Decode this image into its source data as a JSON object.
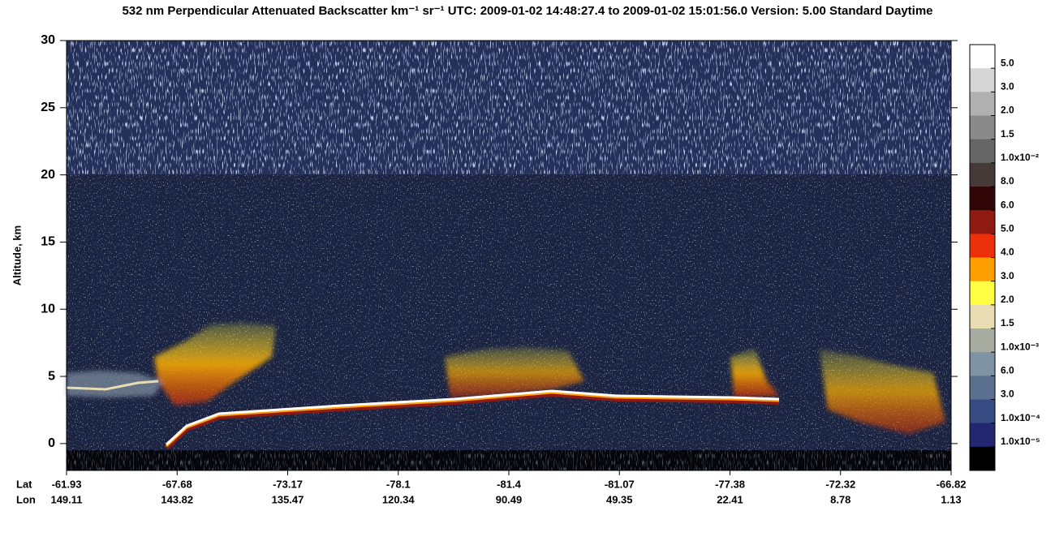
{
  "chart_data": {
    "type": "curtain",
    "title": "532 nm Perpendicular Attenuated Backscatter km⁻¹ sr⁻¹  UTC: 2009-01-02 14:48:27.4 to 2009-01-02 15:01:56.0  Version: 5.00 Standard Daytime",
    "ylabel": "Altitude, km",
    "ylim": [
      -2,
      30
    ],
    "yticks": [
      0,
      5,
      10,
      15,
      20,
      25,
      30
    ],
    "x_rows": [
      {
        "name": "Lat",
        "values": [
          -61.93,
          -67.68,
          -73.17,
          -78.1,
          -81.4,
          -81.07,
          -77.38,
          -72.32,
          -66.82
        ]
      },
      {
        "name": "Lon",
        "values": [
          149.11,
          143.82,
          135.47,
          120.34,
          90.49,
          49.35,
          22.41,
          8.78,
          1.13
        ]
      }
    ],
    "colorbar": {
      "colors": [
        "#ffffff",
        "#d6d6d6",
        "#b0b0b0",
        "#8a8a8a",
        "#666666",
        "#453a37",
        "#300606",
        "#8e1a12",
        "#ec300c",
        "#ff9e00",
        "#ffff44",
        "#eadcb2",
        "#a9aca1",
        "#8093a4",
        "#5b708e",
        "#384a82",
        "#232770",
        "#000000"
      ],
      "labels": [
        "5.0",
        "3.0",
        "2.0",
        "1.5",
        "1.0x10⁻²",
        "8.0",
        "6.0",
        "5.0",
        "4.0",
        "3.0",
        "2.0",
        "1.5",
        "1.0x10⁻³",
        "6.0",
        "3.0",
        "1.0x10⁻⁴",
        "1.0x10⁻⁵"
      ]
    }
  }
}
